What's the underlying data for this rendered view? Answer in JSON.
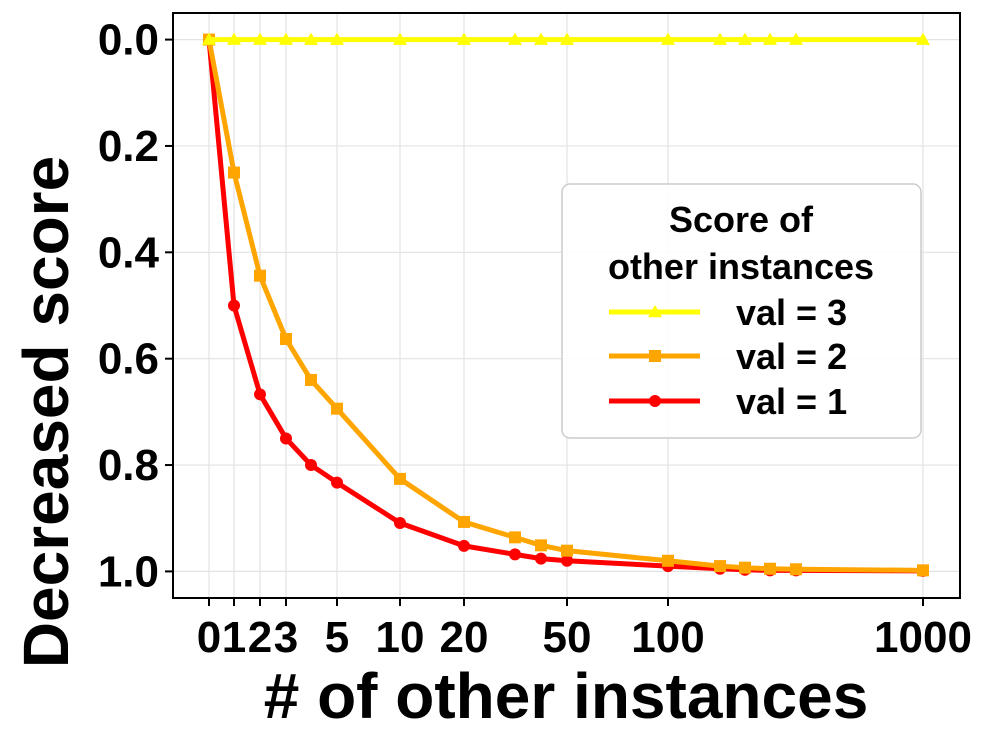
{
  "chart_data": {
    "type": "line",
    "xlabel": "# of other instances",
    "ylabel": "Decreased score",
    "x_scale": "uneven-categorical",
    "x_tick_labels": [
      "0",
      "1",
      "2",
      "3",
      "5",
      "10",
      "20",
      "50",
      "100",
      "1000"
    ],
    "y_tick_labels": [
      "0.0",
      "0.2",
      "0.4",
      "0.6",
      "0.8",
      "1.0"
    ],
    "ylim": [
      1.05,
      -0.05
    ],
    "y_inverted": true,
    "grid": true,
    "legend": {
      "title_line1": "Score of",
      "title_line2": "other instances",
      "placement": "center-right"
    },
    "x_points": [
      0,
      1,
      2,
      3,
      4,
      5,
      10,
      20,
      30,
      40,
      50,
      100,
      200,
      300,
      400,
      500,
      1000
    ],
    "series": [
      {
        "name": "val = 3",
        "color": "#ffff00",
        "marker": "triangle",
        "values": [
          0,
          0,
          0,
          0,
          0,
          0,
          0,
          0,
          0,
          0,
          0,
          0,
          0,
          0,
          0,
          0,
          0
        ]
      },
      {
        "name": "val = 2",
        "color": "#ffa500",
        "marker": "square",
        "values": [
          0,
          0.25,
          0.444,
          0.563,
          0.64,
          0.694,
          0.826,
          0.907,
          0.936,
          0.951,
          0.961,
          0.98,
          0.99,
          0.993,
          0.995,
          0.996,
          0.998
        ]
      },
      {
        "name": "val = 1",
        "color": "#ff0000",
        "marker": "circle",
        "values": [
          0,
          0.5,
          0.667,
          0.75,
          0.8,
          0.833,
          0.909,
          0.952,
          0.968,
          0.976,
          0.98,
          0.99,
          0.995,
          0.997,
          0.998,
          0.998,
          0.999
        ]
      }
    ]
  }
}
